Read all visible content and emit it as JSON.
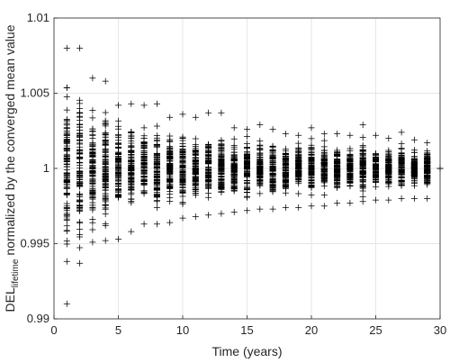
{
  "chart_data": {
    "type": "scatter",
    "marker": "+",
    "marker_color": "#000000",
    "xlabel": "Time (years)",
    "ylabel_main": "DEL",
    "ylabel_sub": "lifetime",
    "ylabel_rest": "normalized by the converged mean value",
    "xlim": [
      0,
      30
    ],
    "ylim": [
      0.99,
      1.01
    ],
    "grid": true,
    "xticks": [
      0,
      5,
      10,
      15,
      20,
      25,
      30
    ],
    "xtick_labels": [
      "0",
      "5",
      "10",
      "15",
      "20",
      "25",
      "30"
    ],
    "yticks": [
      0.99,
      0.995,
      1.0,
      1.005,
      1.01
    ],
    "ytick_labels": [
      "0.99",
      "0.995",
      "1",
      "1.005",
      "1.01"
    ],
    "series_summary": {
      "x": [
        1,
        2,
        3,
        4,
        5,
        6,
        7,
        8,
        9,
        10,
        11,
        12,
        13,
        14,
        15,
        16,
        17,
        18,
        19,
        20,
        21,
        22,
        23,
        24,
        25,
        26,
        27,
        28,
        29,
        30
      ],
      "y_min": [
        0.991,
        0.9937,
        0.9951,
        0.9952,
        0.9953,
        0.9958,
        0.9963,
        0.9963,
        0.9964,
        0.9967,
        0.9968,
        0.9969,
        0.997,
        0.9971,
        0.9972,
        0.9973,
        0.9973,
        0.9974,
        0.9974,
        0.9975,
        0.9975,
        0.9977,
        0.9977,
        0.9978,
        0.9979,
        0.9979,
        0.998,
        0.998,
        0.998,
        1.0
      ],
      "y_max": [
        1.008,
        1.008,
        1.006,
        1.0058,
        1.0042,
        1.0043,
        1.0042,
        1.0043,
        1.0034,
        1.0036,
        1.0034,
        1.0037,
        1.0037,
        1.0027,
        1.0026,
        1.0029,
        1.0026,
        1.0023,
        1.0022,
        1.0027,
        1.0023,
        1.0023,
        1.0022,
        1.0029,
        1.0022,
        1.002,
        1.0024,
        1.0019,
        1.0017,
        1.0
      ],
      "note_points_per_time": 100
    }
  }
}
